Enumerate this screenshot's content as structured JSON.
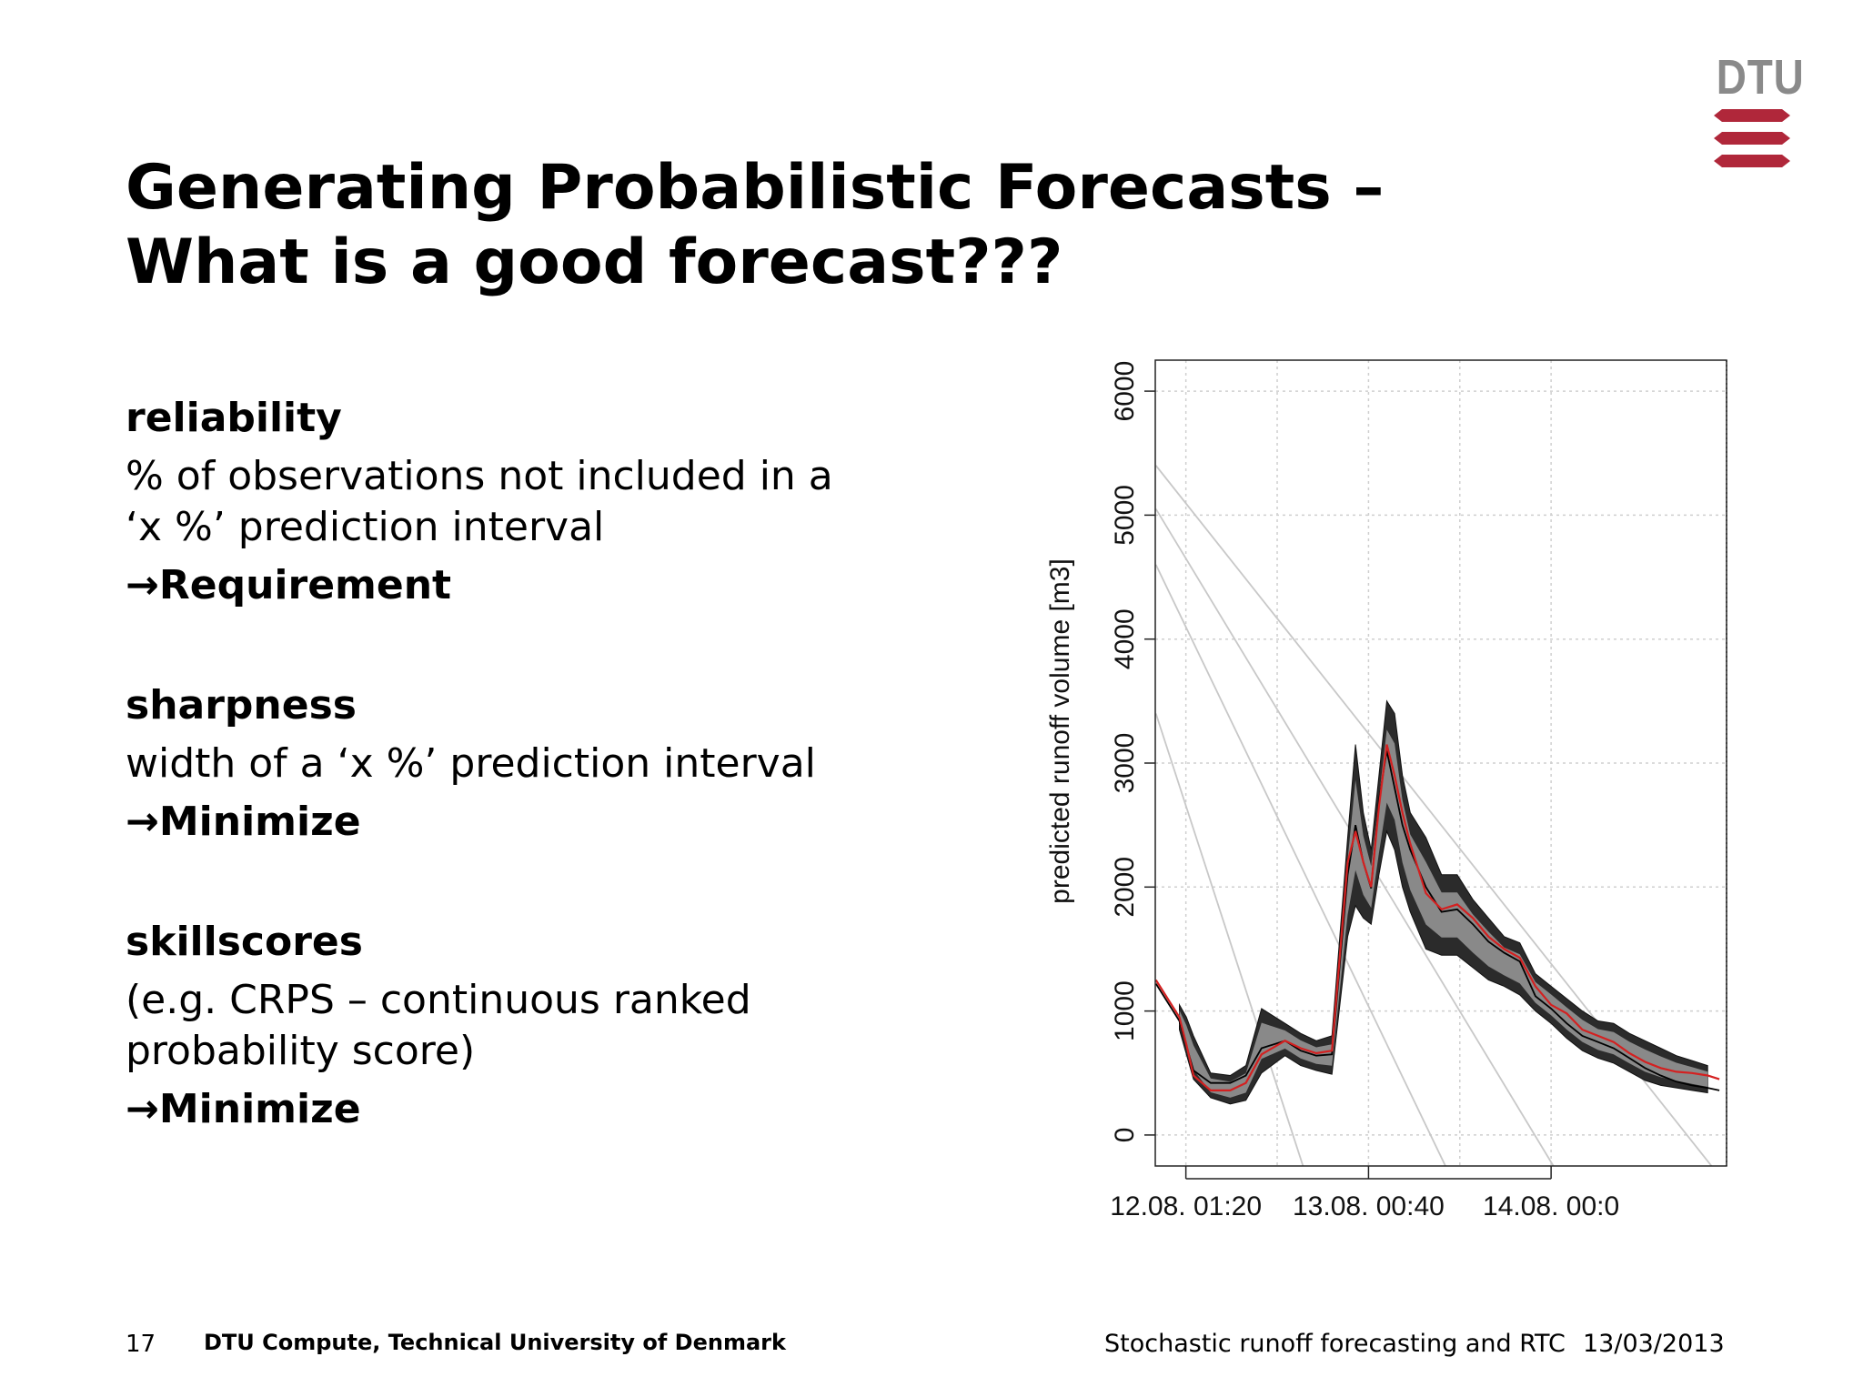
{
  "logo": {
    "text": "DTU",
    "colors": {
      "text": "#8a8a8a",
      "mark": "#b0273a"
    }
  },
  "title": {
    "line1": "Generating Probabilistic Forecasts –",
    "line2": "What is a good forecast???"
  },
  "sections": [
    {
      "heading": "reliability",
      "body": [
        "% of observations not included in a",
        "‘x %’ prediction interval"
      ],
      "conclusion": "Requirement"
    },
    {
      "heading": "sharpness",
      "body": [
        "width of a ‘x %’ prediction interval"
      ],
      "conclusion": "Minimize"
    },
    {
      "heading": "skillscores",
      "body": [
        "(e.g. CRPS – continuous ranked",
        "probability score)"
      ],
      "conclusion": "Minimize"
    }
  ],
  "arrow_glyph": "→",
  "chart_data": {
    "type": "area",
    "title": "",
    "xlabel": "",
    "ylabel": "predicted runoff volume [m3]",
    "ylim": [
      -250,
      6250
    ],
    "yticks": [
      0,
      1000,
      2000,
      3000,
      4000,
      5000,
      6000
    ],
    "xticks": [
      "12.08. 01:20",
      "13.08. 00:40",
      "14.08. 00:0"
    ],
    "x_unit": "hours after 12.08. 00:00",
    "xlim": [
      -2.58,
      70.42
    ],
    "xtick_values": [
      1.33,
      24.67,
      48.0
    ],
    "grid": true,
    "series": [
      {
        "name": "",
        "role": "observed",
        "color": "#000000",
        "x": [
          -2.5,
          0.5,
          1.4,
          2.3,
          4.5,
          7,
          9,
          11,
          14,
          16,
          18,
          20,
          22,
          23,
          24,
          25,
          26,
          27,
          28,
          29,
          30,
          32,
          34,
          36,
          38,
          40,
          42,
          44,
          46,
          48,
          50,
          52,
          54,
          56,
          58,
          60,
          62,
          64,
          66,
          68,
          69.5
        ],
        "y": [
          1220,
          920,
          720,
          520,
          420,
          420,
          480,
          700,
          760,
          680,
          640,
          650,
          2100,
          2500,
          2200,
          1990,
          2700,
          3100,
          2800,
          2500,
          2300,
          2000,
          1800,
          1820,
          1700,
          1560,
          1470,
          1400,
          1120,
          1020,
          900,
          800,
          750,
          700,
          620,
          540,
          480,
          430,
          400,
          380,
          360
        ]
      },
      {
        "name": "",
        "role": "median forecast",
        "color": "#d42020",
        "x": [
          -2.5,
          0.5,
          1.4,
          2.3,
          4.5,
          7,
          9,
          11,
          14,
          16,
          18,
          20,
          22,
          23,
          24,
          25,
          26,
          27,
          28,
          29,
          30,
          32,
          34,
          36,
          38,
          40,
          42,
          44,
          46,
          48,
          50,
          52,
          54,
          56,
          58,
          60,
          62,
          64,
          66,
          68,
          69.5
        ],
        "y": [
          1250,
          950,
          730,
          480,
          360,
          360,
          420,
          650,
          760,
          700,
          660,
          680,
          2200,
          2450,
          2200,
          2000,
          2650,
          3150,
          2900,
          2600,
          2350,
          1950,
          1820,
          1860,
          1750,
          1600,
          1500,
          1430,
          1200,
          1050,
          980,
          850,
          800,
          750,
          660,
          590,
          540,
          510,
          500,
          480,
          450
        ]
      }
    ],
    "band": {
      "role": "prediction interval",
      "x": [
        0.5,
        1.4,
        2.3,
        4.5,
        7,
        9,
        11,
        14,
        16,
        18,
        20,
        22,
        23,
        24,
        25,
        26,
        27,
        28,
        29,
        30,
        32,
        34,
        36,
        38,
        40,
        42,
        44,
        46,
        48,
        50,
        52,
        54,
        56,
        58,
        60,
        62,
        64,
        66,
        68
      ],
      "upper": [
        1050,
        950,
        800,
        500,
        480,
        560,
        1020,
        900,
        820,
        760,
        800,
        2400,
        3150,
        2600,
        2300,
        2900,
        3500,
        3400,
        2900,
        2600,
        2400,
        2100,
        2100,
        1900,
        1750,
        1600,
        1550,
        1300,
        1200,
        1100,
        1000,
        920,
        900,
        820,
        760,
        700,
        640,
        600,
        560
      ],
      "lower": [
        850,
        650,
        450,
        300,
        250,
        280,
        500,
        640,
        560,
        520,
        490,
        1600,
        1850,
        1750,
        1700,
        2100,
        2450,
        2300,
        2000,
        1800,
        1500,
        1450,
        1450,
        1350,
        1250,
        1200,
        1130,
        1000,
        900,
        780,
        680,
        620,
        580,
        510,
        440,
        400,
        380,
        360,
        340
      ]
    },
    "guide_lines": [
      {
        "from": [
          -2.5,
          5400
        ],
        "to": [
          68.5,
          -250
        ]
      },
      {
        "from": [
          -2.5,
          5050
        ],
        "to": [
          48.3,
          -250
        ]
      },
      {
        "from": [
          -2.5,
          4600
        ],
        "to": [
          34.5,
          -250
        ]
      },
      {
        "from": [
          -2.5,
          3400
        ],
        "to": [
          16.3,
          -250
        ]
      }
    ]
  },
  "footer": {
    "page": "17",
    "institution": "DTU Compute, Technical University of Denmark",
    "talk": "Stochastic runoff forecasting and RTC",
    "date": "13/03/2013"
  }
}
